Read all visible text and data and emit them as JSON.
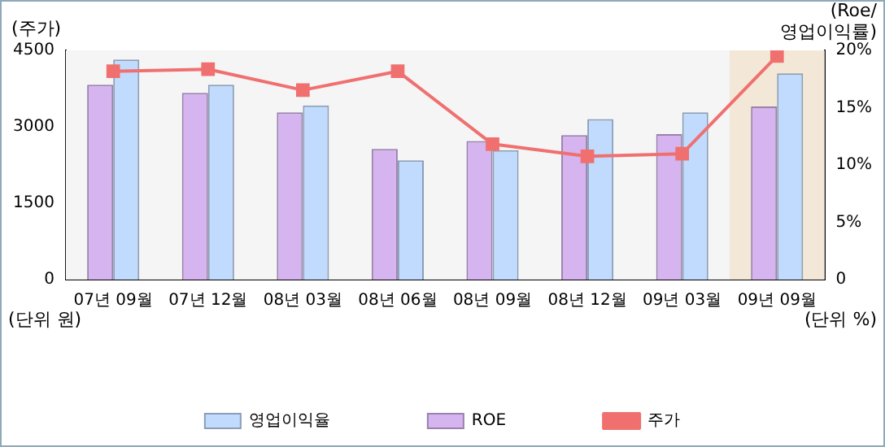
{
  "chart_data": {
    "type": "bar",
    "ylabel": "(주가)",
    "y2label": "(Roe/\n영업이익률)",
    "categories": [
      "07년 09월",
      "07년 12월",
      "08년 03월",
      "08년 06월",
      "08년 09월",
      "08년 12월",
      "09년 03월",
      "09년 09월"
    ],
    "series": [
      {
        "name": "ROE",
        "axis": "y2",
        "color": "#d5b4ef",
        "values": [
          17.0,
          16.3,
          14.6,
          11.4,
          12.1,
          12.6,
          12.7,
          15.1
        ]
      },
      {
        "name": "영업이익율",
        "axis": "y2",
        "color": "#c0dbfe",
        "values": [
          19.2,
          17.0,
          15.2,
          10.4,
          11.3,
          14.0,
          14.6,
          18.0
        ]
      },
      {
        "name": "주가",
        "type": "line",
        "color": "#f07070",
        "marker": "square",
        "values": [
          4090,
          4130,
          3720,
          4090,
          2660,
          2420,
          2470,
          4390
        ]
      }
    ],
    "ylim": [
      0,
      4500
    ],
    "yticks": [
      0,
      1500,
      3000,
      4500
    ],
    "y2lim": [
      0,
      20
    ],
    "y2ticks": [
      {
        "value": 0,
        "label": "0"
      },
      {
        "value": 5,
        "label": "5%"
      },
      {
        "value": 10,
        "label": "10%"
      },
      {
        "value": 15,
        "label": "15%"
      },
      {
        "value": 20,
        "label": "20%"
      }
    ],
    "bands": [
      {
        "axis": "x",
        "from": "09년 09월",
        "to": "09년 09월",
        "color": "#f3e8d8"
      }
    ],
    "annotations": [
      "(단위 원)",
      "(단위 %)"
    ],
    "grid": false,
    "legend": "bottom"
  }
}
